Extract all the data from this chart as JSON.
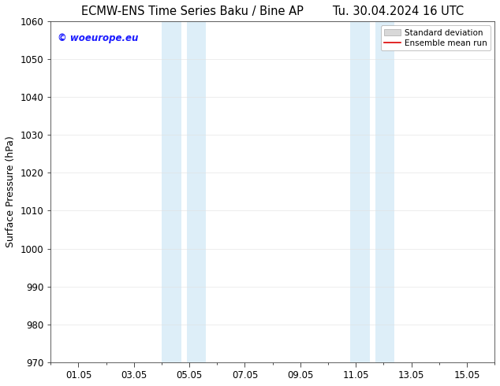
{
  "title_left": "ECMW-ENS Time Series Baku / Bine AP",
  "title_right": "Tu. 30.04.2024 16 UTC",
  "ylabel": "Surface Pressure (hPa)",
  "ylim": [
    970,
    1060
  ],
  "yticks": [
    970,
    980,
    990,
    1000,
    1010,
    1020,
    1030,
    1040,
    1050,
    1060
  ],
  "xtick_labels": [
    "01.05",
    "03.05",
    "05.05",
    "07.05",
    "09.05",
    "11.05",
    "13.05",
    "15.05"
  ],
  "xtick_positions": [
    1,
    3,
    5,
    7,
    9,
    11,
    13,
    15
  ],
  "xmin": 0,
  "xmax": 16,
  "shaded_bands": [
    {
      "xmin": 4.0,
      "xmax": 4.7,
      "color": "#ddeef8"
    },
    {
      "xmin": 4.9,
      "xmax": 5.6,
      "color": "#ddeef8"
    },
    {
      "xmin": 10.8,
      "xmax": 11.5,
      "color": "#ddeef8"
    },
    {
      "xmin": 11.7,
      "xmax": 12.4,
      "color": "#ddeef8"
    }
  ],
  "watermark_text": "© woeurope.eu",
  "watermark_color": "#1a1aff",
  "bg_color": "#ffffff",
  "plot_bg_color": "#ffffff",
  "grid_color": "#cccccc",
  "title_fontsize": 10.5,
  "ylabel_fontsize": 9,
  "tick_fontsize": 8.5,
  "legend_entries": [
    "Standard deviation",
    "Ensemble mean run"
  ],
  "legend_patch_color": "#d8d8d8",
  "legend_patch_ec": "#aaaaaa",
  "legend_line_color": "#dd0000"
}
